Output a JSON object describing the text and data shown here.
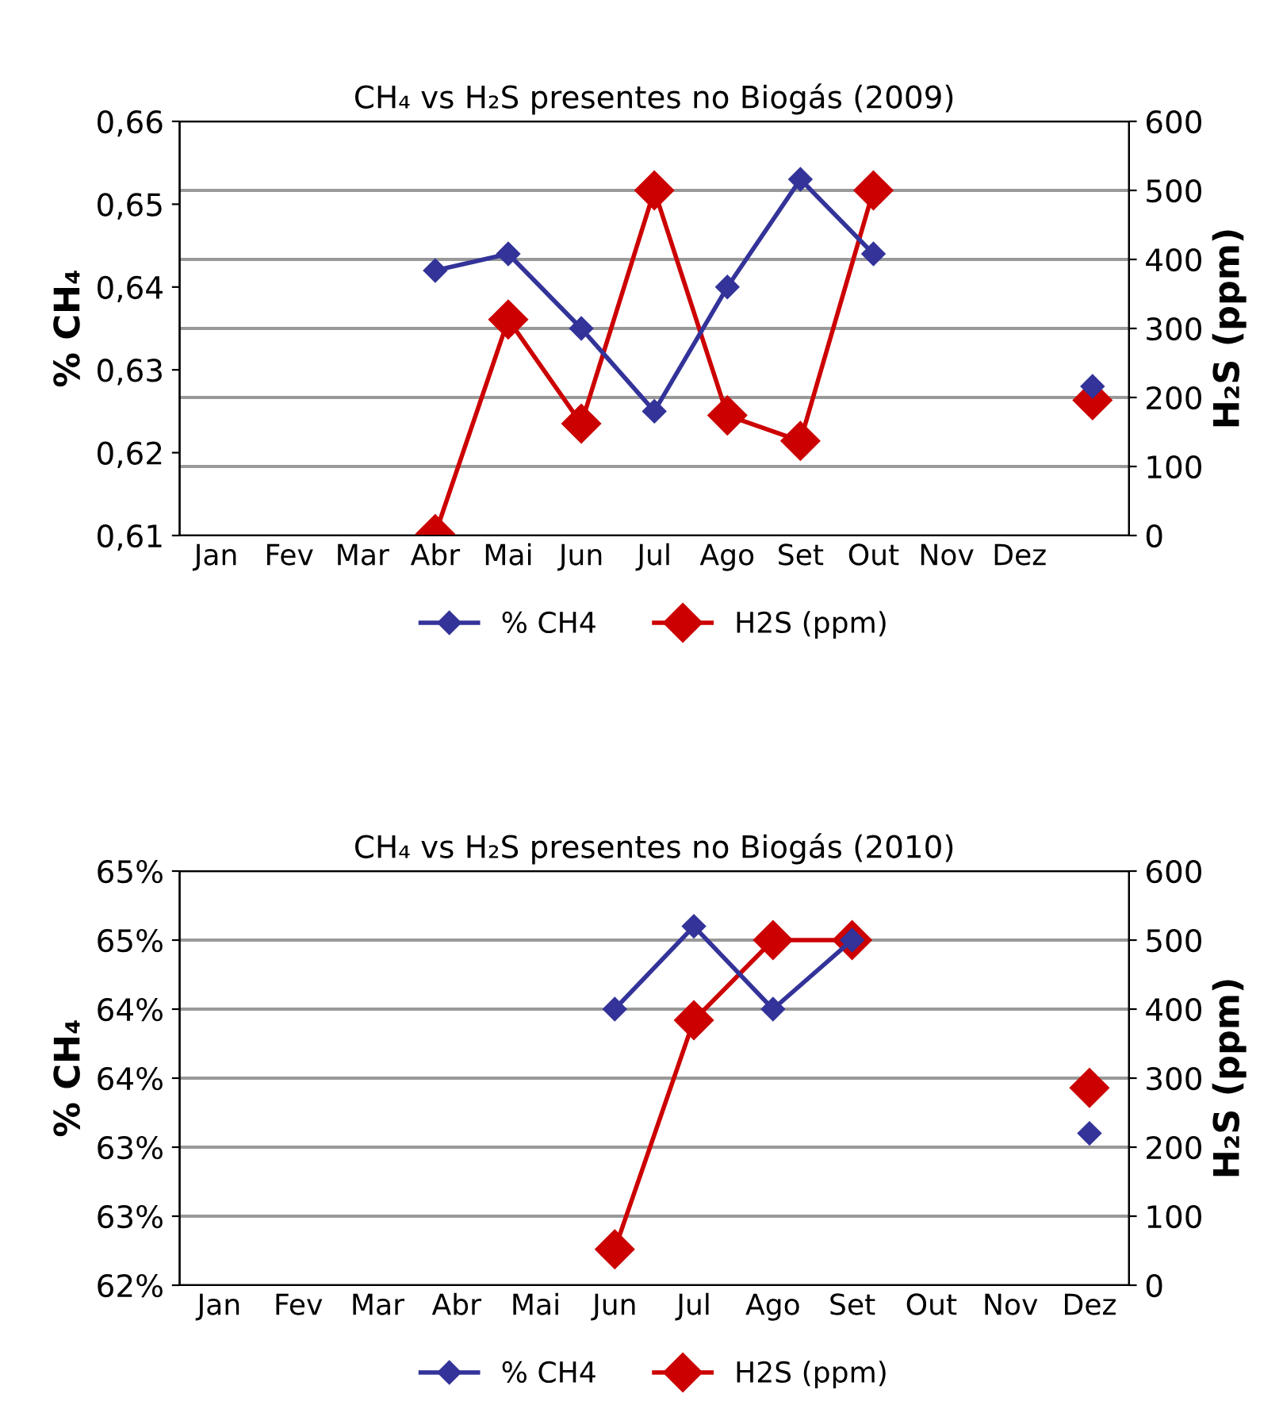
{
  "chart_data": [
    {
      "type": "line",
      "title": "CH₄ vs H₂S presentes no Biogás (2009)",
      "ylabel": "% CH₄",
      "y2label": "H₂S (ppm)",
      "categories": [
        "Jan",
        "Fev",
        "Mar",
        "Abr",
        "Mai",
        "Jun",
        "Jul",
        "Ago",
        "Set",
        "Out",
        "Nov",
        "Dez",
        null
      ],
      "series": [
        {
          "name": "% CH4",
          "color": "#333399",
          "values": [
            null,
            null,
            null,
            0.642,
            0.644,
            0.635,
            0.625,
            0.64,
            0.653,
            0.644,
            null,
            null,
            0.628
          ]
        },
        {
          "name": "H2S (ppm)",
          "color": "#cc0000",
          "axis": "y2",
          "values": [
            null,
            null,
            null,
            2,
            313,
            162,
            500,
            174,
            137,
            500,
            null,
            null,
            196
          ]
        }
      ],
      "ylim": [
        0.61,
        0.66
      ],
      "yticks": [
        {
          "value": 0.61,
          "label": "0,61"
        },
        {
          "value": 0.62,
          "label": "0,62"
        },
        {
          "value": 0.63,
          "label": "0,63"
        },
        {
          "value": 0.64,
          "label": "0,64"
        },
        {
          "value": 0.65,
          "label": "0,65"
        },
        {
          "value": 0.66,
          "label": "0,66"
        }
      ],
      "y2lim": [
        0,
        600
      ],
      "y2ticks": [
        0,
        100,
        200,
        300,
        400,
        500,
        600
      ],
      "grid": "y",
      "legend": "bottom",
      "marker": "diamond",
      "line_style": "solid"
    },
    {
      "type": "line",
      "title": "CH₄ vs H₂S presentes no Biogás (2010)",
      "ylabel": "% CH₄",
      "y2label": "H₂S (ppm)",
      "categories": [
        "Jan",
        "Fev",
        "Mar",
        "Abr",
        "Mai",
        "Jun",
        "Jul",
        "Ago",
        "Set",
        "Out",
        "Nov",
        "Dez"
      ],
      "series": [
        {
          "name": "% CH4",
          "color": "#333399",
          "values": [
            null,
            null,
            null,
            null,
            null,
            0.64,
            0.646,
            0.64,
            0.645,
            null,
            null,
            0.631
          ]
        },
        {
          "name": "H2S (ppm)",
          "color": "#cc0000",
          "axis": "y2",
          "values": [
            null,
            null,
            null,
            null,
            null,
            52,
            384,
            500,
            500,
            null,
            null,
            286
          ]
        }
      ],
      "ylim": [
        0.62,
        0.65
      ],
      "yticks": [
        {
          "value": 0.62,
          "label": "62%"
        },
        {
          "value": 0.625,
          "label": "63%"
        },
        {
          "value": 0.63,
          "label": "63%"
        },
        {
          "value": 0.635,
          "label": "64%"
        },
        {
          "value": 0.64,
          "label": "64%"
        },
        {
          "value": 0.645,
          "label": "65%"
        },
        {
          "value": 0.65,
          "label": "65%"
        }
      ],
      "y2lim": [
        0,
        600
      ],
      "y2ticks": [
        0,
        100,
        200,
        300,
        400,
        500,
        600
      ],
      "grid": "y",
      "legend": "bottom",
      "marker": "diamond",
      "line_style": "solid"
    }
  ]
}
